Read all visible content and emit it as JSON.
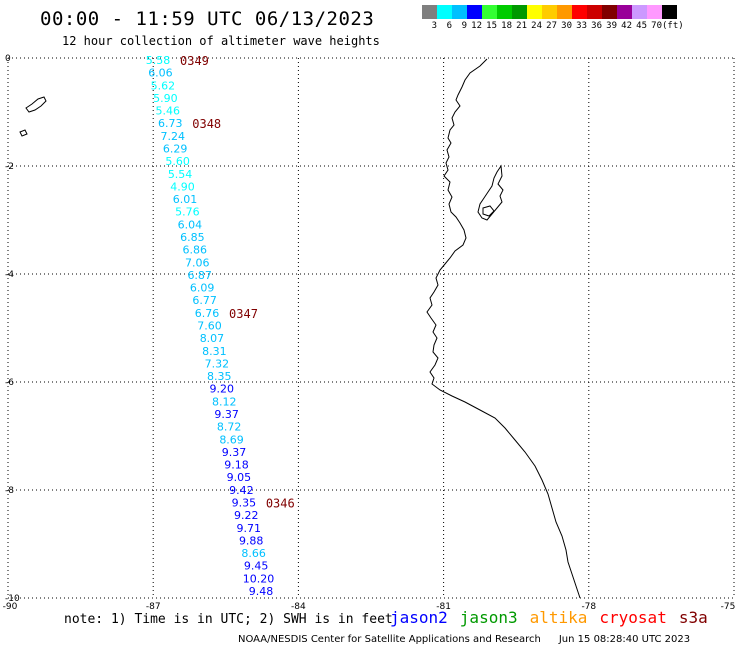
{
  "header": {
    "title": "00:00 - 11:59 UTC 06/13/2023",
    "subtitle": "12 hour collection of altimeter wave heights"
  },
  "colorbar": {
    "colors": [
      "#7f7f7f",
      "#00ffff",
      "#00c0ff",
      "#0000ff",
      "#33ff33",
      "#00cc00",
      "#009900",
      "#ffff00",
      "#ffcc00",
      "#ff9900",
      "#ff0000",
      "#cc0000",
      "#800000",
      "#990099",
      "#cc99ff",
      "#ff99ff",
      "#000000"
    ],
    "labels": [
      "3",
      "6",
      "9",
      "12",
      "15",
      "18",
      "21",
      "24",
      "27",
      "30",
      "33",
      "36",
      "39",
      "42",
      "45",
      "70",
      "(ft)"
    ]
  },
  "map": {
    "lon_ticks": [
      "-90",
      "-87",
      "-84",
      "-81",
      "-78",
      "-75"
    ],
    "lat_ticks": [
      "0",
      "-2",
      "-4",
      "-6",
      "-8",
      "-10"
    ],
    "lon_range": [
      -90,
      -75
    ],
    "lat_range": [
      -10,
      0
    ],
    "grid": "dotted",
    "land_outline_color": "#000000",
    "pass_labels": [
      "0349",
      "0348",
      "0347",
      "0346"
    ],
    "wave_heights": [
      "5.58",
      "6.06",
      "5.62",
      "5.90",
      "5.46",
      "6.73",
      "7.24",
      "6.29",
      "5.60",
      "5.54",
      "4.90",
      "6.01",
      "5.76",
      "6.04",
      "6.85",
      "6.86",
      "7.06",
      "6.87",
      "6.09",
      "6.77",
      "6.76",
      "7.60",
      "8.07",
      "8.31",
      "7.32",
      "8.35",
      "9.20",
      "8.12",
      "9.37",
      "8.72",
      "8.69",
      "9.37",
      "9.18",
      "9.05",
      "9.42",
      "9.35",
      "9.22",
      "9.71",
      "9.88",
      "8.66",
      "9.45",
      "10.20",
      "9.48"
    ]
  },
  "footer": {
    "note": "note: 1) Time is in UTC; 2) SWH is in feet",
    "legend": [
      {
        "name": "jason2",
        "color": "#0000ff"
      },
      {
        "name": "jason3",
        "color": "#009900"
      },
      {
        "name": "altika",
        "color": "#ff9900"
      },
      {
        "name": "cryosat",
        "color": "#ff0000"
      },
      {
        "name": "s3a",
        "color": "#800000"
      }
    ],
    "credit": "NOAA/NESDIS Center for Satellite Applications and Research",
    "timestamp": "Jun 15 08:28:40 UTC 2023"
  }
}
